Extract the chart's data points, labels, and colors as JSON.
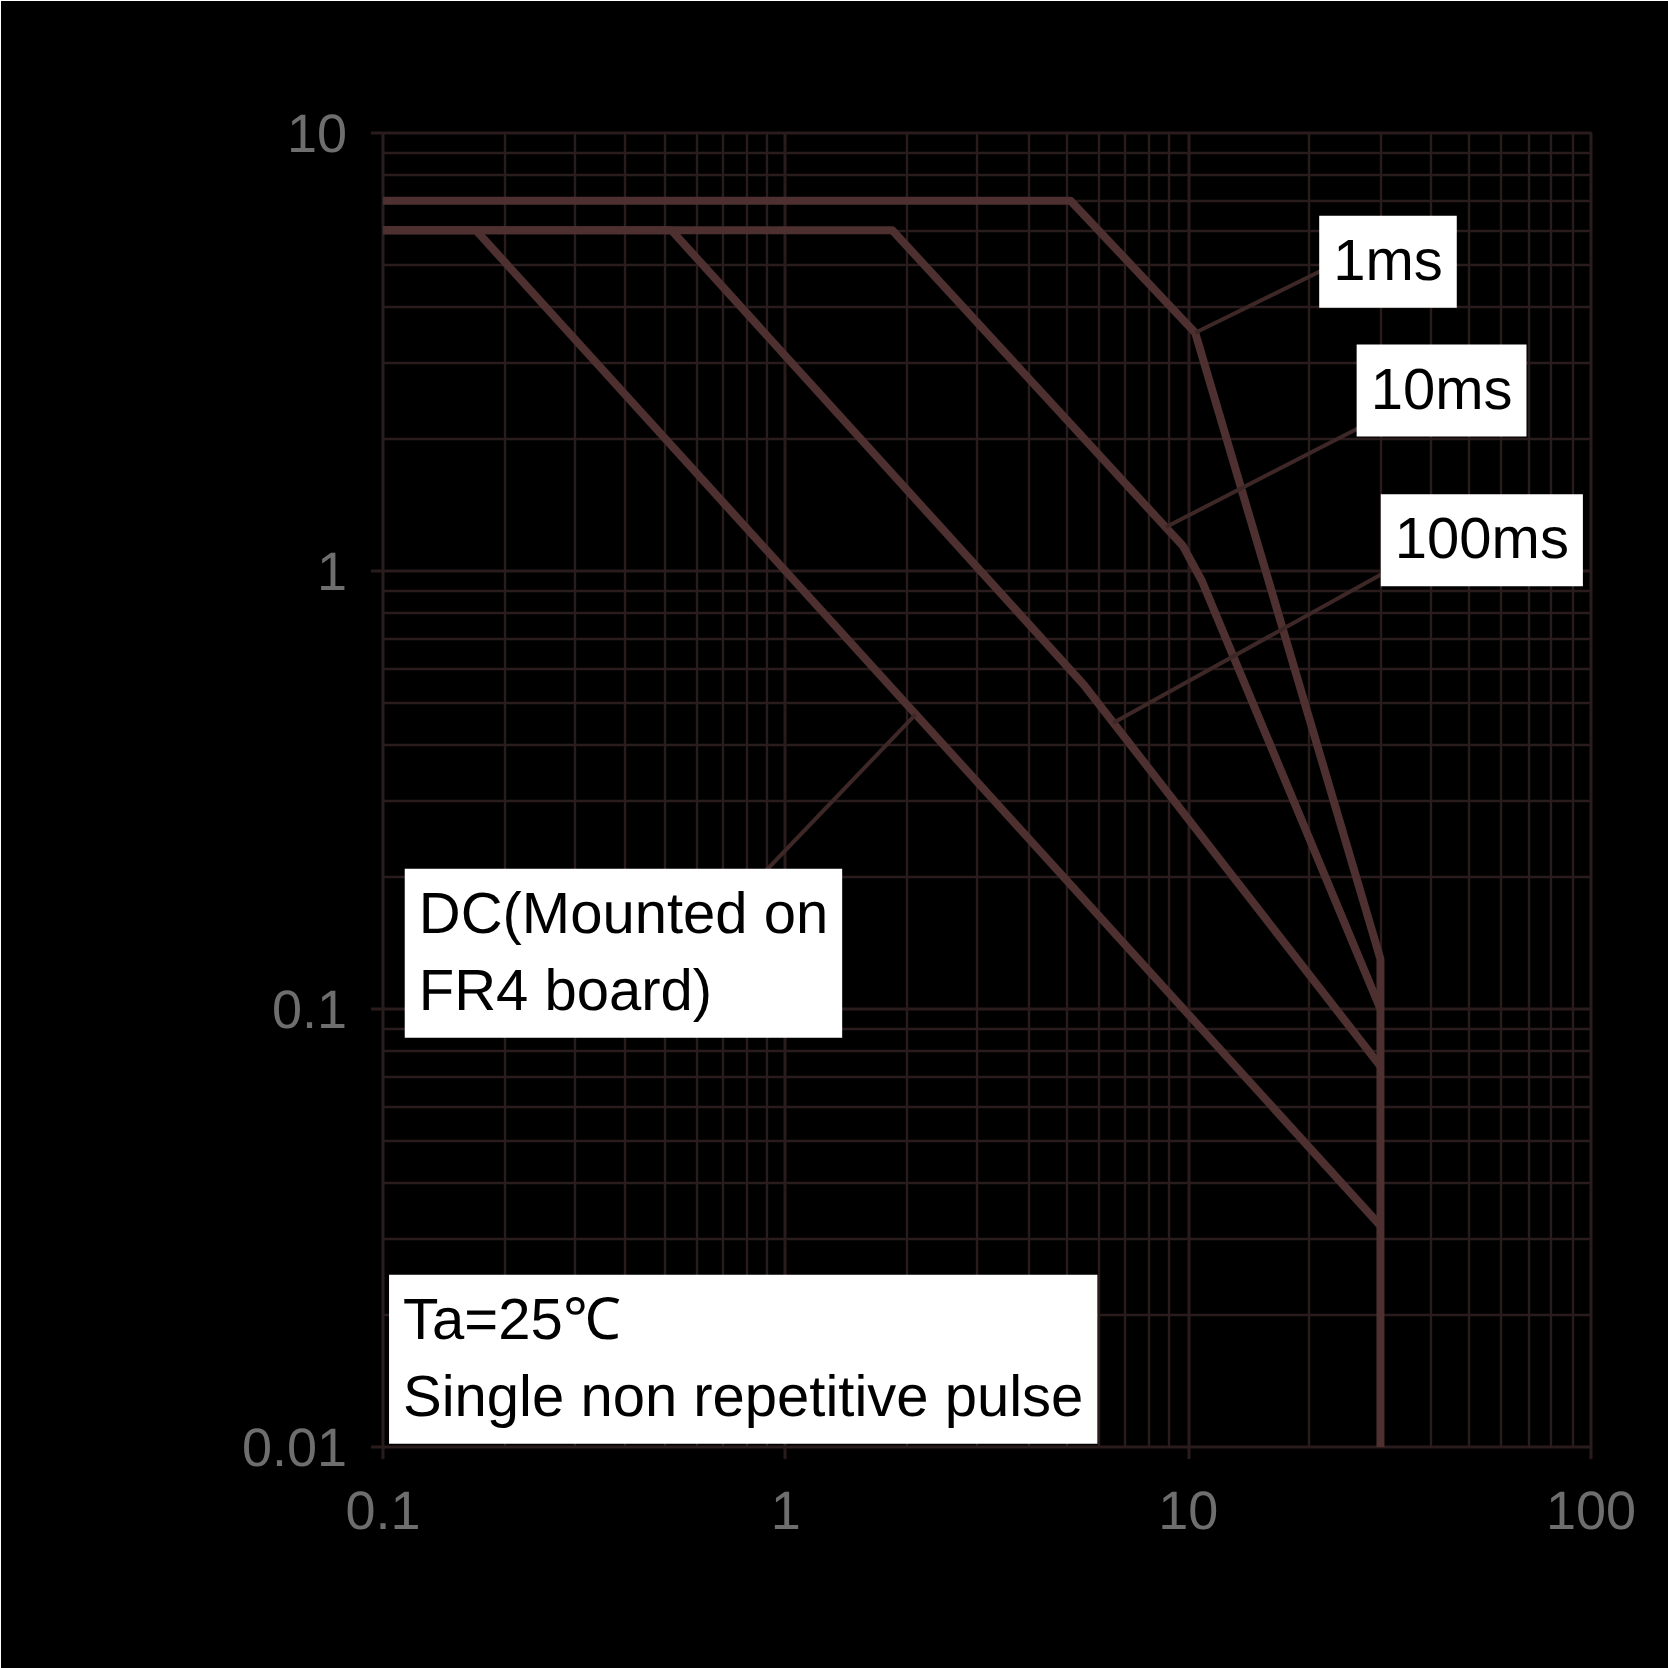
{
  "chart_data": {
    "type": "line",
    "log": "xy",
    "xlim": [
      0.1,
      100
    ],
    "ylim": [
      0.01,
      10
    ],
    "xticks": [
      0.1,
      1,
      10,
      100
    ],
    "yticks": [
      0.01,
      0.1,
      1,
      10
    ],
    "grid": true,
    "series": [
      {
        "color": "#4e3030",
        "x": [
          0.1,
          5.1,
          10.4,
          30,
          30
        ],
        "values": [
          7,
          7,
          3.5,
          0.13,
          0.01
        ]
      },
      {
        "color": "#4e3030",
        "x": [
          0.1,
          1.84,
          9.7,
          10.8,
          30
        ],
        "values": [
          6,
          6,
          1.14,
          0.95,
          0.1
        ]
      },
      {
        "color": "#4e3030",
        "x": [
          0.1,
          0.52,
          5.5,
          30
        ],
        "values": [
          6,
          6,
          0.55,
          0.074
        ]
      },
      {
        "color": "#4e3030",
        "x": [
          0.1,
          0.17,
          30
        ],
        "values": [
          6,
          6,
          0.032
        ]
      }
    ],
    "annotations": [
      {
        "text": "1ms",
        "x": 10.4,
        "y": 3.5
      },
      {
        "text": "10ms",
        "x": 8.8,
        "y": 1.26
      },
      {
        "text": "100ms",
        "x": 6.5,
        "y": 0.45
      },
      {
        "text": "DC(Mounted on\n FR4 board)",
        "x": 2.1,
        "y": 0.47
      },
      "Ta=25℃\nSingle non repetitive pulse"
    ]
  }
}
